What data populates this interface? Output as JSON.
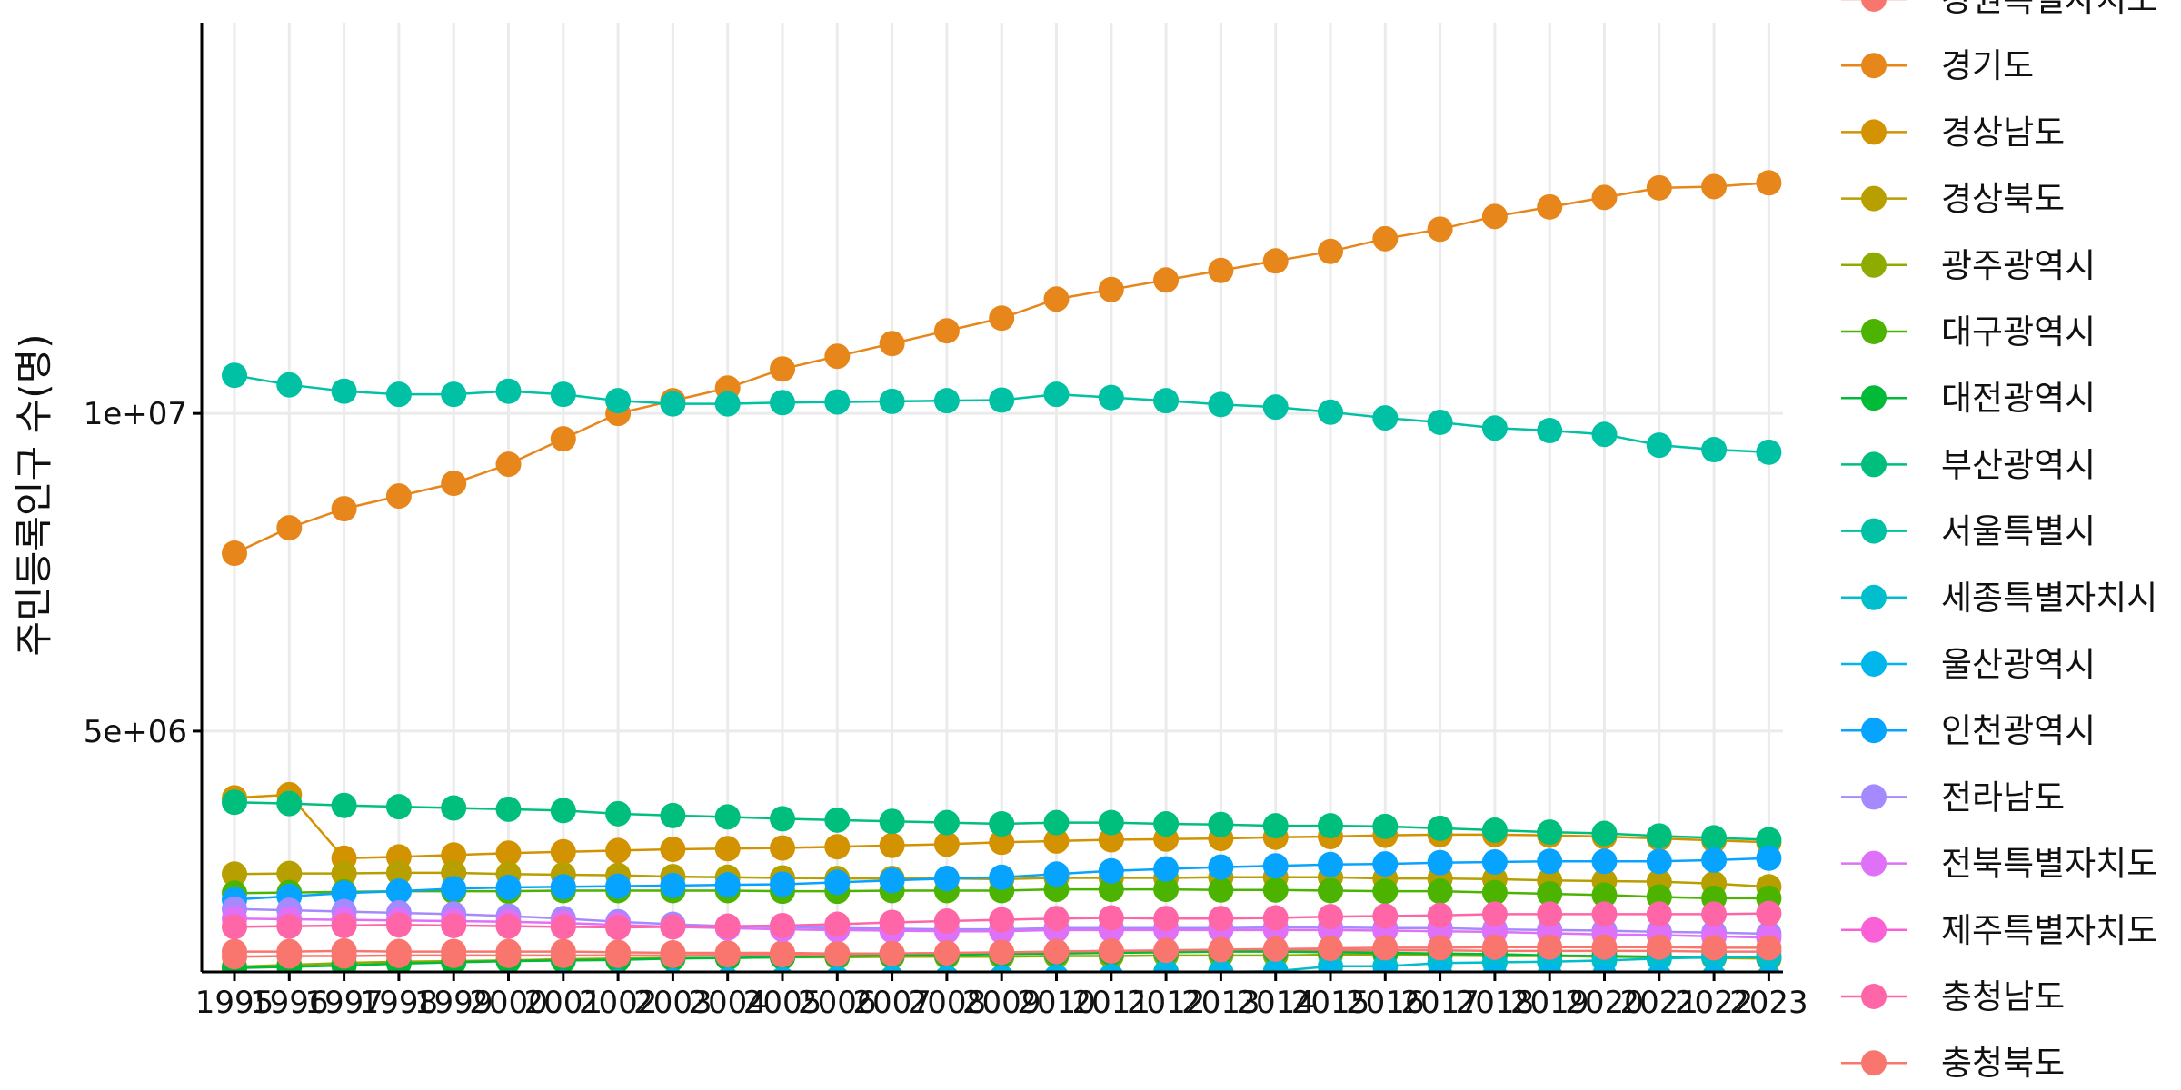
{
  "chart_data": {
    "type": "line",
    "title": "",
    "xlabel": "",
    "ylabel": "주민등록인구 수(명)",
    "grid": true,
    "legend_position": "right",
    "ylim": [
      1210000,
      16150000
    ],
    "y_ticks": [
      {
        "value": 5000000,
        "label": "5e+06"
      },
      {
        "value": 10000000,
        "label": "1e+07"
      }
    ],
    "x": [
      1995,
      1996,
      1997,
      1998,
      1999,
      2000,
      2001,
      2002,
      2003,
      2004,
      2005,
      2006,
      2007,
      2008,
      2009,
      2010,
      2011,
      2012,
      2013,
      2014,
      2015,
      2016,
      2017,
      2018,
      2019,
      2020,
      2021,
      2022,
      2023
    ],
    "series": [
      {
        "name": "강원특별자치도",
        "color": "#F8766D",
        "values": [
          1530000,
          1530000,
          1540000,
          1530000,
          1530000,
          1530000,
          1530000,
          1520000,
          1510000,
          1510000,
          1510000,
          1500000,
          1500000,
          1500000,
          1510000,
          1530000,
          1540000,
          1540000,
          1540000,
          1540000,
          1550000,
          1550000,
          1550000,
          1540000,
          1540000,
          1540000,
          1540000,
          1530000,
          1530000
        ]
      },
      {
        "name": "경기도",
        "color": "#E7861B",
        "values": [
          7800000,
          8200000,
          8500000,
          8700000,
          8900000,
          9200000,
          9600000,
          10000000,
          10200000,
          10400000,
          10700000,
          10900000,
          11100000,
          11300000,
          11500000,
          11800000,
          11950000,
          12100000,
          12250000,
          12400000,
          12550000,
          12750000,
          12900000,
          13100000,
          13250000,
          13400000,
          13550000,
          13570000,
          13630000
        ]
      },
      {
        "name": "경상남도",
        "color": "#D39200",
        "values": [
          3950000,
          4000000,
          3000000,
          3020000,
          3050000,
          3080000,
          3100000,
          3120000,
          3140000,
          3150000,
          3160000,
          3180000,
          3200000,
          3220000,
          3250000,
          3270000,
          3290000,
          3300000,
          3310000,
          3330000,
          3340000,
          3360000,
          3370000,
          3370000,
          3360000,
          3340000,
          3310000,
          3280000,
          3250000
        ]
      },
      {
        "name": "경상북도",
        "color": "#B79F00",
        "values": [
          2750000,
          2760000,
          2760000,
          2770000,
          2770000,
          2750000,
          2740000,
          2730000,
          2710000,
          2700000,
          2690000,
          2680000,
          2680000,
          2680000,
          2670000,
          2690000,
          2690000,
          2690000,
          2700000,
          2700000,
          2700000,
          2680000,
          2680000,
          2670000,
          2650000,
          2640000,
          2630000,
          2600000,
          2550000
        ]
      },
      {
        "name": "광주광역시",
        "color": "#8EAB00",
        "values": [
          1290000,
          1320000,
          1350000,
          1370000,
          1380000,
          1390000,
          1410000,
          1420000,
          1430000,
          1430000,
          1440000,
          1440000,
          1450000,
          1450000,
          1450000,
          1460000,
          1460000,
          1470000,
          1470000,
          1470000,
          1480000,
          1480000,
          1470000,
          1460000,
          1460000,
          1450000,
          1440000,
          1430000,
          1420000
        ]
      },
      {
        "name": "대구광역시",
        "color": "#4CB400",
        "values": [
          2450000,
          2460000,
          2470000,
          2480000,
          2480000,
          2480000,
          2490000,
          2490000,
          2490000,
          2490000,
          2480000,
          2480000,
          2490000,
          2490000,
          2490000,
          2510000,
          2510000,
          2510000,
          2500000,
          2500000,
          2490000,
          2480000,
          2480000,
          2460000,
          2440000,
          2420000,
          2390000,
          2370000,
          2370000
        ]
      },
      {
        "name": "대전광역시",
        "color": "#00BA38",
        "values": [
          1270000,
          1290000,
          1310000,
          1340000,
          1360000,
          1380000,
          1390000,
          1400000,
          1420000,
          1430000,
          1440000,
          1460000,
          1470000,
          1480000,
          1490000,
          1500000,
          1510000,
          1520000,
          1530000,
          1530000,
          1520000,
          1510000,
          1500000,
          1490000,
          1470000,
          1460000,
          1450000,
          1450000,
          1440000
        ]
      },
      {
        "name": "부산광역시",
        "color": "#00BF7D",
        "values": [
          3880000,
          3860000,
          3830000,
          3810000,
          3790000,
          3770000,
          3750000,
          3700000,
          3670000,
          3650000,
          3620000,
          3600000,
          3580000,
          3560000,
          3540000,
          3560000,
          3560000,
          3540000,
          3530000,
          3510000,
          3510000,
          3500000,
          3470000,
          3440000,
          3410000,
          3390000,
          3350000,
          3320000,
          3290000
        ]
      },
      {
        "name": "서울특별시",
        "color": "#00C1A3",
        "values": [
          10600000,
          10450000,
          10350000,
          10300000,
          10300000,
          10350000,
          10300000,
          10200000,
          10150000,
          10150000,
          10170000,
          10180000,
          10190000,
          10200000,
          10210000,
          10300000,
          10250000,
          10200000,
          10140000,
          10100000,
          10020000,
          9930000,
          9860000,
          9770000,
          9730000,
          9670000,
          9500000,
          9430000,
          9390000
        ]
      },
      {
        "name": "세종특별자치시",
        "color": "#00BECC",
        "values": [
          null,
          null,
          null,
          null,
          null,
          null,
          null,
          null,
          null,
          null,
          null,
          null,
          null,
          null,
          null,
          null,
          null,
          1210000,
          1210000,
          1220000,
          1300000,
          1300000,
          1350000,
          1360000,
          1370000,
          1390000,
          1420000,
          1440000,
          1450000
        ]
      },
      {
        "name": "울산광역시",
        "color": "#00B6EB",
        "values": [
          null,
          null,
          1000000,
          1020000,
          1030000,
          1040000,
          1050000,
          1060000,
          1070000,
          1080000,
          1090000,
          1100000,
          1110000,
          1110000,
          1120000,
          1130000,
          1140000,
          1150000,
          1160000,
          1170000,
          1180000,
          1180000,
          1170000,
          1160000,
          1160000,
          1150000,
          1140000,
          1130000,
          1120000
        ]
      },
      {
        "name": "인천광역시",
        "color": "#06A4FF",
        "values": [
          2350000,
          2400000,
          2450000,
          2480000,
          2520000,
          2540000,
          2550000,
          2560000,
          2570000,
          2580000,
          2590000,
          2620000,
          2650000,
          2680000,
          2700000,
          2750000,
          2800000,
          2830000,
          2860000,
          2880000,
          2900000,
          2910000,
          2930000,
          2940000,
          2950000,
          2950000,
          2950000,
          2970000,
          3000000
        ]
      },
      {
        "name": "전라남도",
        "color": "#A58AFF",
        "values": [
          2200000,
          2180000,
          2160000,
          2140000,
          2120000,
          2090000,
          2050000,
          2000000,
          1960000,
          1930000,
          1920000,
          1900000,
          1890000,
          1880000,
          1880000,
          1900000,
          1900000,
          1900000,
          1900000,
          1910000,
          1910000,
          1900000,
          1900000,
          1880000,
          1870000,
          1860000,
          1840000,
          1830000,
          1810000
        ]
      },
      {
        "name": "전북특별자치도",
        "color": "#DF70F8",
        "values": [
          2050000,
          2040000,
          2030000,
          2020000,
          2010000,
          2000000,
          1980000,
          1950000,
          1920000,
          1900000,
          1880000,
          1870000,
          1860000,
          1850000,
          1850000,
          1870000,
          1870000,
          1870000,
          1870000,
          1870000,
          1870000,
          1860000,
          1850000,
          1840000,
          1820000,
          1800000,
          1790000,
          1770000,
          1750000
        ]
      },
      {
        "name": "제주특별자치도",
        "color": "#FB61D7",
        "values": [
          510000,
          510000,
          520000,
          520000,
          520000,
          520000,
          520000,
          530000,
          530000,
          530000,
          530000,
          540000,
          540000,
          540000,
          540000,
          550000,
          560000,
          560000,
          580000,
          590000,
          610000,
          630000,
          650000,
          660000,
          670000,
          670000,
          680000,
          680000,
          680000
        ]
      },
      {
        "name": "충청남도",
        "color": "#FF66A8",
        "values": [
          1920000,
          1930000,
          1940000,
          1950000,
          1940000,
          1930000,
          1920000,
          1910000,
          1920000,
          1930000,
          1940000,
          1960000,
          1990000,
          2010000,
          2030000,
          2050000,
          2060000,
          2050000,
          2050000,
          2060000,
          2080000,
          2090000,
          2100000,
          2120000,
          2120000,
          2120000,
          2120000,
          2120000,
          2130000
        ]
      },
      {
        "name": "충청북도",
        "color": "#F8766D",
        "values": [
          1450000,
          1460000,
          1460000,
          1470000,
          1470000,
          1470000,
          1470000,
          1470000,
          1470000,
          1480000,
          1480000,
          1490000,
          1500000,
          1510000,
          1520000,
          1530000,
          1540000,
          1550000,
          1560000,
          1570000,
          1580000,
          1590000,
          1590000,
          1600000,
          1600000,
          1600000,
          1600000,
          1590000,
          1590000
        ]
      }
    ]
  }
}
